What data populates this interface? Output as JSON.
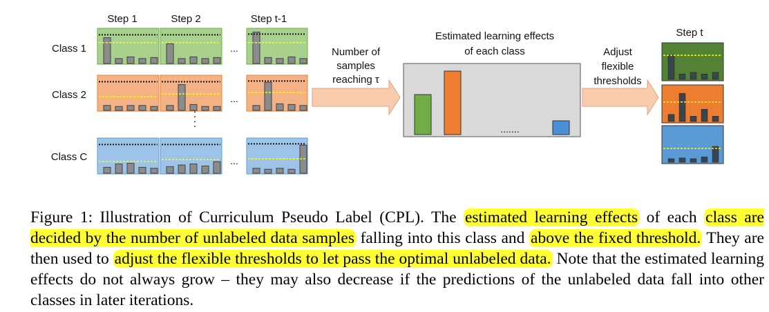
{
  "figure": {
    "step_labels": [
      "Step 1",
      "Step 2",
      "Step t-1"
    ],
    "class_labels": [
      "Class 1",
      "Class 2",
      "Class C"
    ],
    "row_ellipsis": "...",
    "col_ellipsis": ":",
    "arrow1_text": [
      "Number of",
      "samples",
      "reaching τ"
    ],
    "panel_title": [
      "Estimated learning effects",
      "of each class"
    ],
    "panel_dots": ".......",
    "arrow2_text": [
      "Adjust",
      "flexible",
      "thresholds"
    ],
    "step_t_label": "Step t",
    "colors": {
      "class1_fill": "#a9d18e",
      "class1_border": "#70ad47",
      "class2_fill": "#f4b183",
      "class2_border": "#ed7d31",
      "classC_fill": "#9dc3e6",
      "classC_border": "#5b9bd5",
      "panel_fill": "#d9d9d9",
      "effect_green": "#70ad47",
      "effect_orange": "#ed7d31",
      "effect_blue": "#4a90d9",
      "step_t_green": "#548235",
      "step_t_orange": "#ed7d31",
      "step_t_blue": "#5b9bd5",
      "arrow_fill": "#f8cbad",
      "threshold_yellow": "#ffff00"
    }
  },
  "caption": {
    "prefix": "Figure 1: Illustration of Curriculum Pseudo Label (CPL). The ",
    "hl1": "estimated learning effects",
    "mid1": " of each ",
    "hl2": "class are decided by the number of unlabeled data samples",
    "mid2": " falling into this class and ",
    "hl3": "above the fixed threshold.",
    "mid3": " They are then used to ",
    "hl4": "adjust the flexible thresholds to let pass the optimal unlabeled data.",
    "suffix": " Note that the estimated learning effects do not always grow – they may also decrease if the predictions of the unlabeled data fall into other classes in later iterations."
  }
}
